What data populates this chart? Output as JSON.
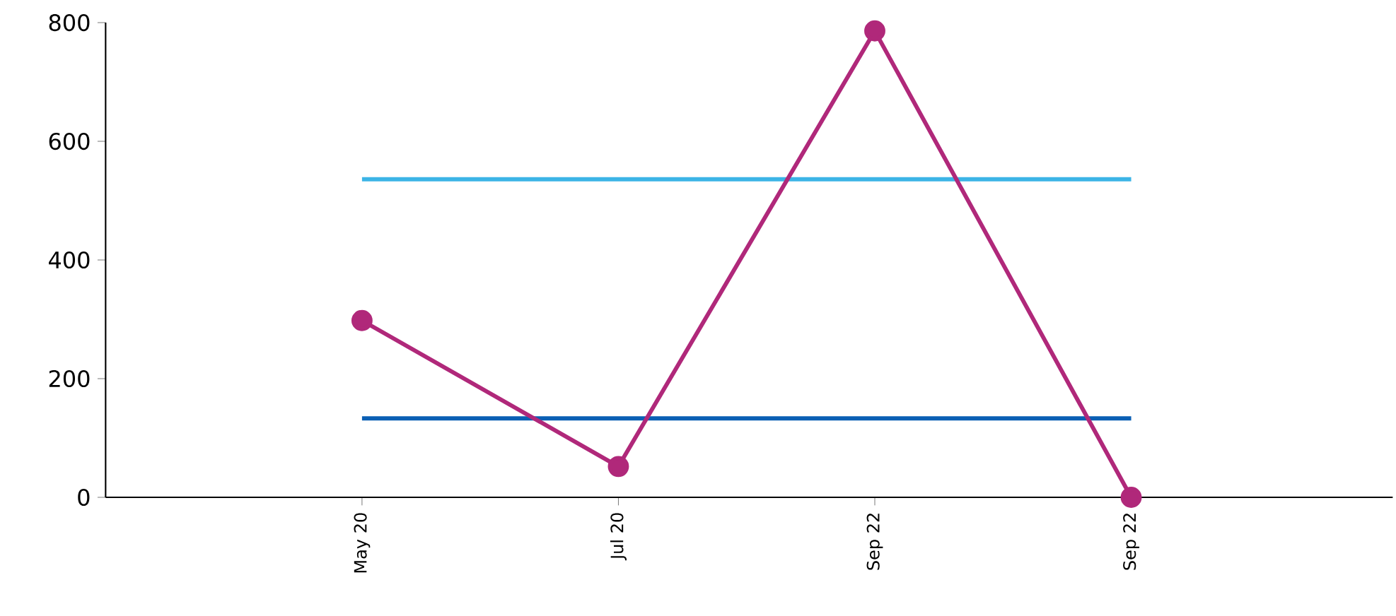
{
  "chart_data": {
    "type": "line",
    "categories": [
      "May 20",
      "Jul 20",
      "Sep 22",
      "Sep 22"
    ],
    "series": [
      {
        "color": "#3cb4e6",
        "values": [
          536,
          536,
          536,
          536
        ],
        "marker": "none"
      },
      {
        "color": "#0a5fb4",
        "values": [
          133,
          133,
          133,
          133
        ],
        "marker": "none"
      },
      {
        "color": "#b0287a",
        "values": [
          298,
          52,
          786,
          0
        ],
        "marker": "circle"
      }
    ],
    "ylim": [
      0,
      800
    ],
    "yticks": [
      0,
      200,
      400,
      600,
      800
    ]
  }
}
